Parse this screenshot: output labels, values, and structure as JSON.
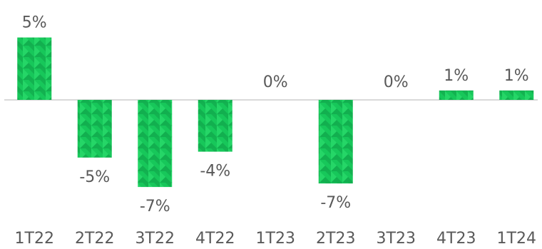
{
  "chart_data": {
    "type": "bar",
    "title": "",
    "xlabel": "",
    "ylabel": "",
    "categories": [
      "1T22",
      "2T22",
      "3T22",
      "4T22",
      "1T23",
      "2T23",
      "3T23",
      "4T23",
      "1T24"
    ],
    "values": [
      5.3,
      -4.9,
      -7.4,
      -4.4,
      0.0,
      -7.1,
      0.0,
      0.8,
      0.8
    ],
    "data_labels": [
      "5%",
      "-5%",
      "-7%",
      "-4%",
      "0%",
      "-7%",
      "0%",
      "1%",
      "1%"
    ],
    "ylim": [
      -8.5,
      8
    ],
    "grid": false,
    "legend": "none",
    "colors": {
      "bar": "#17c75a",
      "bar_pattern_dark": "#0e9a45",
      "bar_pattern_light": "#2fe06f",
      "axis": "#d9d9d9",
      "text": "#595959"
    }
  }
}
